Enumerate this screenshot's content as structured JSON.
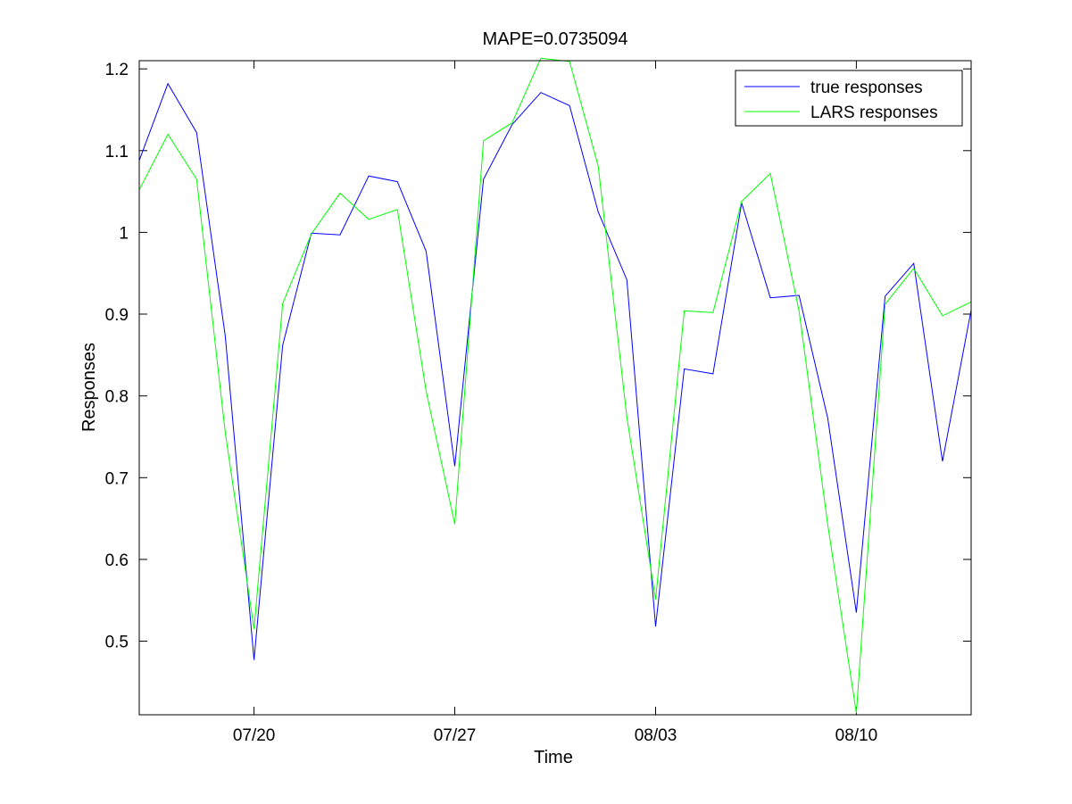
{
  "chart_data": {
    "type": "line",
    "title": "MAPE=0.0735094",
    "xlabel": "Time",
    "ylabel": "Responses",
    "x_start": "07/16",
    "x_end": "08/14",
    "xlim": [
      "07/16",
      "08/14"
    ],
    "ylim": [
      0.41,
      1.21
    ],
    "x_ticks": [
      {
        "date": "07/20",
        "label": "07/20"
      },
      {
        "date": "07/27",
        "label": "07/27"
      },
      {
        "date": "08/03",
        "label": "08/03"
      },
      {
        "date": "08/10",
        "label": "08/10"
      }
    ],
    "y_ticks": [
      {
        "value": 0.5,
        "label": "0.5"
      },
      {
        "value": 0.6,
        "label": "0.6"
      },
      {
        "value": 0.7,
        "label": "0.7"
      },
      {
        "value": 0.8,
        "label": "0.8"
      },
      {
        "value": 0.9,
        "label": "0.9"
      },
      {
        "value": 1.0,
        "label": "1"
      },
      {
        "value": 1.1,
        "label": "1.1"
      },
      {
        "value": 1.2,
        "label": "1.2"
      }
    ],
    "grid": false,
    "legend_position": "top-right",
    "x": [
      "07/16",
      "07/17",
      "07/18",
      "07/19",
      "07/20",
      "07/21",
      "07/22",
      "07/23",
      "07/24",
      "07/25",
      "07/26",
      "07/27",
      "07/28",
      "07/29",
      "07/30",
      "07/31",
      "08/01",
      "08/02",
      "08/03",
      "08/04",
      "08/05",
      "08/06",
      "08/07",
      "08/08",
      "08/09",
      "08/10",
      "08/11",
      "08/12",
      "08/13",
      "08/14"
    ],
    "series": [
      {
        "name": "true responses",
        "color": "#0000ff",
        "values": [
          1.088,
          1.182,
          1.122,
          0.873,
          0.477,
          0.862,
          0.999,
          0.997,
          1.069,
          1.062,
          0.977,
          0.714,
          1.065,
          1.132,
          1.171,
          1.155,
          1.025,
          0.942,
          0.518,
          0.833,
          0.827,
          1.036,
          0.92,
          0.923,
          0.773,
          0.535,
          0.922,
          0.962,
          0.72,
          0.905
        ]
      },
      {
        "name": "LARS responses",
        "color": "#00ff00",
        "values": [
          1.052,
          1.12,
          1.065,
          0.755,
          0.515,
          0.913,
          0.998,
          1.048,
          1.016,
          1.028,
          0.806,
          0.643,
          1.112,
          1.134,
          1.213,
          1.209,
          1.081,
          0.774,
          0.551,
          0.904,
          0.902,
          1.038,
          1.072,
          0.904,
          0.643,
          0.412,
          0.912,
          0.956,
          0.898,
          0.915
        ]
      }
    ]
  }
}
